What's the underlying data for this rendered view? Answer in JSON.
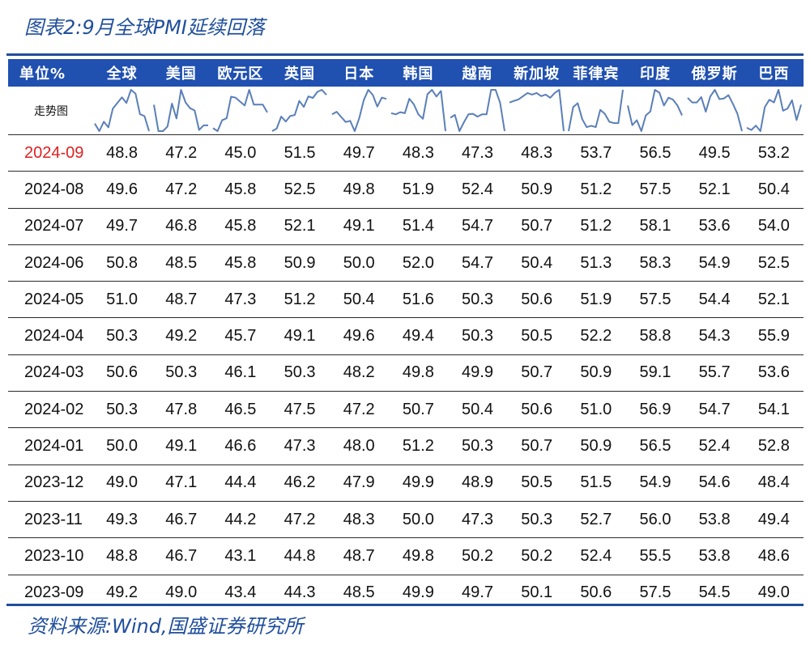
{
  "title": "图表2:9月全球PMI延续回落",
  "source": "资料来源:Wind,国盛证券研究所",
  "colors": {
    "brand": "#1f4e9c",
    "header_bg": "#2050b0",
    "highlight": "#e02020",
    "sparkline": "#5a7fb8"
  },
  "table": {
    "unit_label": "单位%",
    "spark_label": "走势图",
    "columns": [
      "全球",
      "美国",
      "欧元区",
      "英国",
      "日本",
      "韩国",
      "越南",
      "新加坡",
      "菲律宾",
      "印度",
      "俄罗斯",
      "巴西"
    ],
    "rows": [
      {
        "month": "2024-09",
        "values": [
          "48.8",
          "47.2",
          "45.0",
          "51.5",
          "49.7",
          "48.3",
          "47.3",
          "48.3",
          "53.7",
          "56.5",
          "49.5",
          "53.2"
        ]
      },
      {
        "month": "2024-08",
        "values": [
          "49.6",
          "47.2",
          "45.8",
          "52.5",
          "49.8",
          "51.9",
          "52.4",
          "50.9",
          "51.2",
          "57.5",
          "52.1",
          "50.4"
        ]
      },
      {
        "month": "2024-07",
        "values": [
          "49.7",
          "46.8",
          "45.8",
          "52.1",
          "49.1",
          "51.4",
          "54.7",
          "50.7",
          "51.2",
          "58.1",
          "53.6",
          "54.0"
        ]
      },
      {
        "month": "2024-06",
        "values": [
          "50.8",
          "48.5",
          "45.8",
          "50.9",
          "50.0",
          "52.0",
          "54.7",
          "50.4",
          "51.3",
          "58.3",
          "54.9",
          "52.5"
        ]
      },
      {
        "month": "2024-05",
        "values": [
          "51.0",
          "48.7",
          "47.3",
          "51.2",
          "50.4",
          "51.6",
          "50.3",
          "50.6",
          "51.9",
          "57.5",
          "54.4",
          "52.1"
        ]
      },
      {
        "month": "2024-04",
        "values": [
          "50.3",
          "49.2",
          "45.7",
          "49.1",
          "49.6",
          "49.4",
          "50.3",
          "50.5",
          "52.2",
          "58.8",
          "54.3",
          "55.9"
        ]
      },
      {
        "month": "2024-03",
        "values": [
          "50.6",
          "50.3",
          "46.1",
          "50.3",
          "48.2",
          "49.8",
          "49.9",
          "50.7",
          "50.9",
          "59.1",
          "55.7",
          "53.6"
        ]
      },
      {
        "month": "2024-02",
        "values": [
          "50.3",
          "47.8",
          "46.5",
          "47.5",
          "47.2",
          "50.7",
          "50.4",
          "50.6",
          "51.0",
          "56.9",
          "54.7",
          "54.1"
        ]
      },
      {
        "month": "2024-01",
        "values": [
          "50.0",
          "49.1",
          "46.6",
          "47.3",
          "48.0",
          "51.2",
          "50.3",
          "50.7",
          "50.9",
          "56.5",
          "52.4",
          "52.8"
        ]
      },
      {
        "month": "2023-12",
        "values": [
          "49.0",
          "47.1",
          "44.4",
          "46.2",
          "47.9",
          "49.9",
          "48.9",
          "50.5",
          "51.5",
          "54.9",
          "54.6",
          "48.4"
        ]
      },
      {
        "month": "2023-11",
        "values": [
          "49.3",
          "46.7",
          "44.2",
          "47.2",
          "48.3",
          "50.0",
          "47.3",
          "50.3",
          "52.7",
          "56.0",
          "53.8",
          "49.4"
        ]
      },
      {
        "month": "2023-10",
        "values": [
          "48.8",
          "46.7",
          "43.1",
          "44.8",
          "48.7",
          "49.8",
          "50.2",
          "50.2",
          "52.4",
          "55.5",
          "53.8",
          "48.6"
        ]
      },
      {
        "month": "2023-09",
        "values": [
          "49.2",
          "49.0",
          "43.4",
          "44.3",
          "48.5",
          "49.9",
          "49.7",
          "50.1",
          "50.6",
          "57.5",
          "54.5",
          "49.0"
        ]
      }
    ],
    "highlight_row": "2024-09"
  }
}
